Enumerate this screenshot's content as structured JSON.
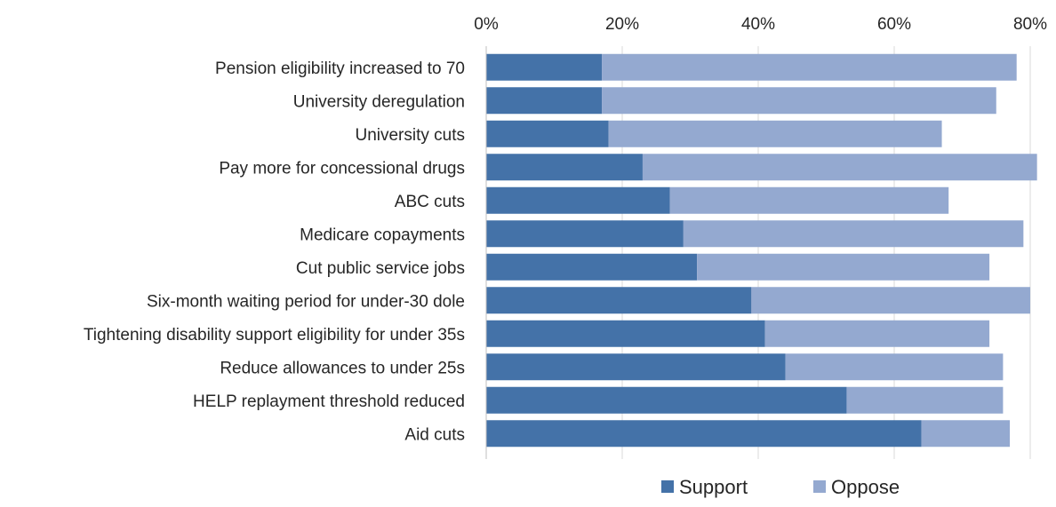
{
  "chart_data": {
    "type": "bar",
    "orientation": "horizontal",
    "stacked": true,
    "categories": [
      "Pension eligibility increased to 70",
      "University deregulation",
      "University cuts",
      "Pay more for concessional drugs",
      "ABC cuts",
      "Medicare copayments",
      "Cut public service jobs",
      "Six-month waiting period for under-30 dole",
      "Tightening disability support eligibility for under 35s",
      "Reduce allowances to under 25s",
      "HELP replayment threshold reduced",
      "Aid cuts"
    ],
    "series": [
      {
        "name": "Support",
        "color": "#4472a8",
        "values": [
          17,
          17,
          18,
          23,
          27,
          29,
          31,
          39,
          41,
          44,
          53,
          64
        ]
      },
      {
        "name": "Oppose",
        "color": "#94a9d0",
        "values": [
          61,
          58,
          49,
          58,
          41,
          50,
          43,
          41,
          33,
          32,
          23,
          13
        ]
      }
    ],
    "title": "",
    "xlabel": "",
    "ylabel": "",
    "xlim": [
      0,
      80
    ],
    "x_ticks": [
      "0%",
      "20%",
      "40%",
      "60%",
      "80%"
    ],
    "x_tick_values": [
      0,
      20,
      40,
      60,
      80
    ],
    "axis_position": "top",
    "grid": true,
    "legend_position": "bottom"
  }
}
